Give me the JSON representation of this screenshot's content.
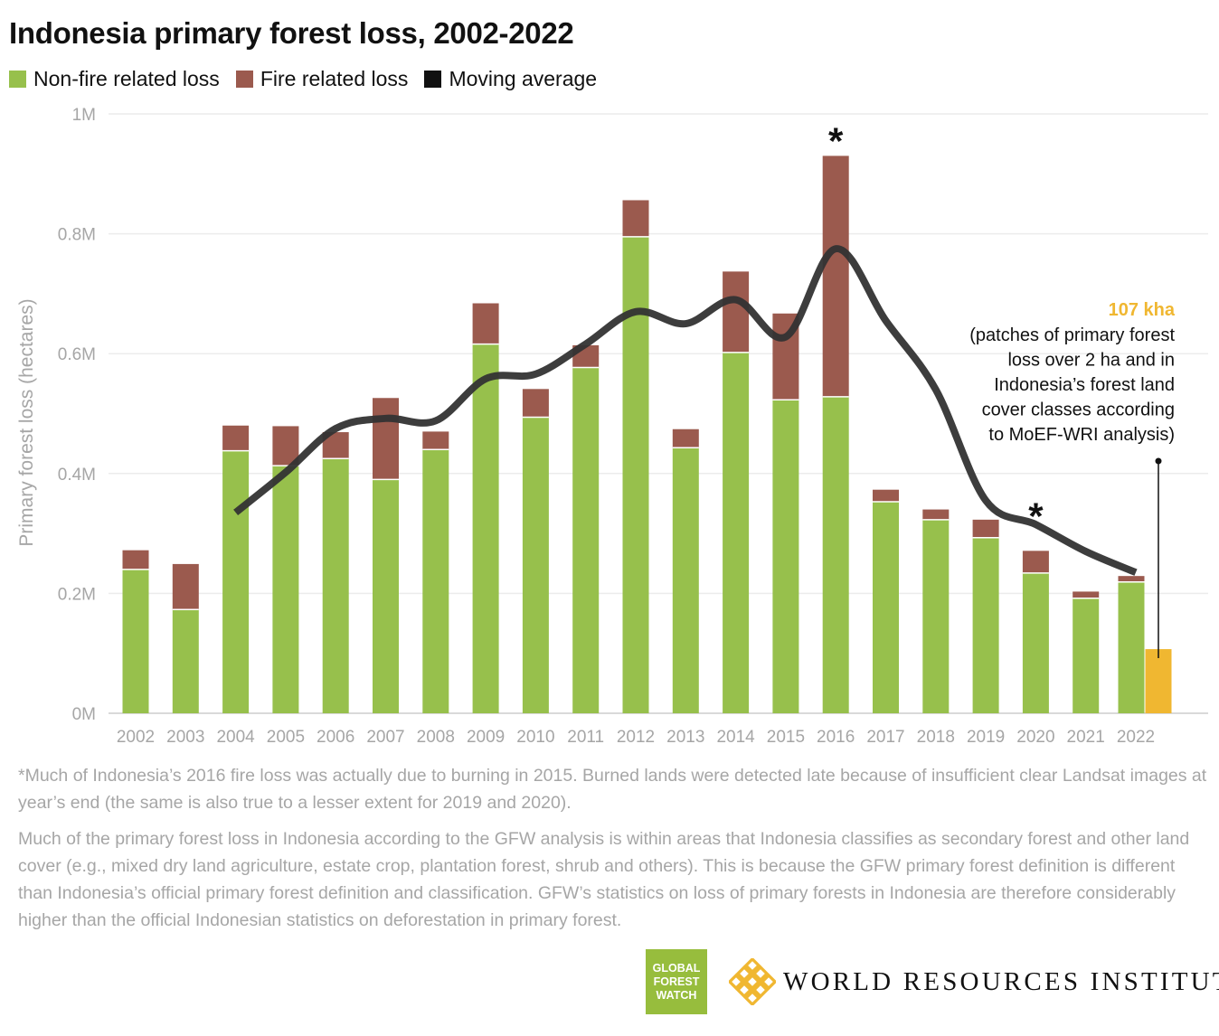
{
  "title": "Indonesia primary forest loss, 2002-2022",
  "legend": [
    {
      "label": "Non-fire related loss",
      "color": "#97c04c"
    },
    {
      "label": "Fire related loss",
      "color": "#9b5a4e"
    },
    {
      "label": "Moving average",
      "color": "#111111"
    }
  ],
  "chart_data": {
    "type": "bar",
    "stacked": true,
    "categories": [
      "2002",
      "2003",
      "2004",
      "2005",
      "2006",
      "2007",
      "2008",
      "2009",
      "2010",
      "2011",
      "2012",
      "2013",
      "2014",
      "2015",
      "2016",
      "2017",
      "2018",
      "2019",
      "2020",
      "2021",
      "2022"
    ],
    "ylabel": "Primary forest loss (hectares)",
    "ylim": [
      0,
      1000000
    ],
    "yticks": [
      {
        "value": 0,
        "label": "0M"
      },
      {
        "value": 200000,
        "label": "0.2M"
      },
      {
        "value": 400000,
        "label": "0.4M"
      },
      {
        "value": 600000,
        "label": "0.6M"
      },
      {
        "value": 800000,
        "label": "0.8M"
      },
      {
        "value": 1000000,
        "label": "1M"
      }
    ],
    "grid": true,
    "series": [
      {
        "name": "Non-fire related loss",
        "color": "#97c04c",
        "values": [
          240000,
          173000,
          438000,
          413000,
          425000,
          390000,
          440000,
          616000,
          494000,
          577000,
          795000,
          443000,
          602000,
          523000,
          528000,
          353000,
          323000,
          293000,
          234000,
          192000,
          219000
        ]
      },
      {
        "name": "Fire related loss",
        "color": "#9b5a4e",
        "values": [
          32000,
          76000,
          42000,
          66000,
          44000,
          136000,
          30000,
          68000,
          47000,
          37000,
          61000,
          31000,
          135000,
          144000,
          402000,
          20000,
          17000,
          30000,
          37000,
          11000,
          10000
        ]
      }
    ],
    "moving_average": {
      "name": "Moving average",
      "color": "#333333",
      "start_category": "2004",
      "values": [
        335000,
        402000,
        475000,
        492000,
        488000,
        558000,
        566000,
        616000,
        670000,
        650000,
        690000,
        628000,
        775000,
        655000,
        540000,
        355000,
        315000,
        270000,
        235000
      ]
    },
    "highlight": {
      "category": "2022",
      "value": 107000,
      "color": "#f0b731",
      "label": "107 kha",
      "note_lines": [
        "(patches of primary forest",
        "loss over 2 ha and in",
        "Indonesia’s forest land",
        "cover classes according",
        "to MoEF-WRI analysis)"
      ]
    },
    "asterisks": [
      {
        "category": "2016",
        "text": "*"
      },
      {
        "category": "2020",
        "text": "*"
      }
    ]
  },
  "footnote_1": "*Much of Indonesia’s 2016 fire loss was actually due to burning in 2015. Burned lands were detected late because of insufficient clear Landsat images at year’s end (the same is also true to a lesser extent for 2019 and 2020).",
  "footnote_2": "Much of the primary forest loss in Indonesia according to the GFW analysis is within areas that Indonesia classifies as secondary forest and other land cover (e.g., mixed dry land agriculture, estate crop, plantation forest, shrub and others). This is because the GFW primary forest definition is different than Indonesia’s official primary forest definition and classification. GFW’s statistics on loss of primary forests in Indonesia are therefore considerably higher than the official Indonesian statistics on deforestation in primary forest.",
  "logos": {
    "gfw_lines": [
      "GLOBAL",
      "FOREST",
      "WATCH"
    ],
    "gfw_color": "#97bd3d",
    "wri_text": "WORLD RESOURCES INSTITUTE",
    "wri_color": "#f0b731"
  }
}
